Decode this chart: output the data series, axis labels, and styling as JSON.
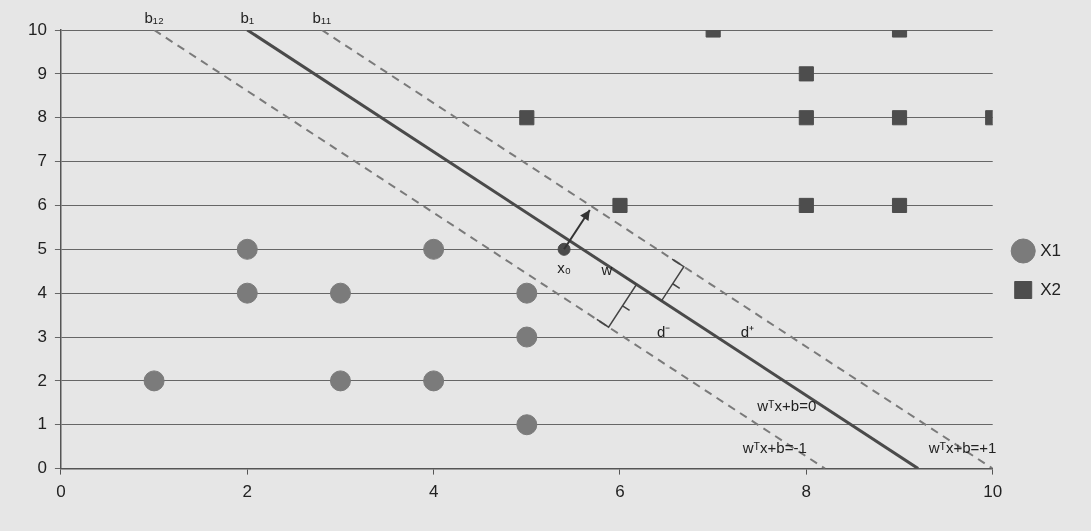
{
  "chart_data": {
    "type": "scatter",
    "xlim": [
      0,
      10
    ],
    "xticks": [
      0,
      2,
      4,
      6,
      8,
      10
    ],
    "ylim": [
      0,
      10
    ],
    "yticks": [
      0,
      1,
      2,
      3,
      4,
      5,
      6,
      7,
      8,
      9,
      10
    ],
    "grid": "y",
    "legend": "right",
    "series": [
      {
        "name": "X1",
        "marker": "circle",
        "color": "#7b7b7b",
        "x": [
          2,
          4,
          2,
          3,
          5,
          5,
          1,
          3,
          4,
          5
        ],
        "values": [
          5,
          5,
          4,
          4,
          4,
          3,
          2,
          2,
          2,
          1
        ]
      },
      {
        "name": "X2",
        "marker": "square",
        "color": "#4d4d4d",
        "x": [
          7,
          9,
          8,
          5,
          8,
          9,
          10,
          6,
          8,
          9
        ],
        "values": [
          10,
          10,
          9,
          8,
          8,
          8,
          8,
          6,
          6,
          6
        ]
      },
      {
        "marker": "circle",
        "color": "#4a4a4a",
        "x": [
          5.4
        ],
        "values": [
          5
        ]
      },
      {
        "name": "b₁₂",
        "type": "line",
        "line_style": "dashed",
        "marker": "none",
        "color": "#7a7a7a",
        "x": [
          1,
          8.2
        ],
        "values": [
          10,
          0
        ]
      },
      {
        "name": "b₁",
        "type": "line",
        "line_style": "solid",
        "marker": "none",
        "color": "#4a4a4a",
        "x": [
          2,
          9.2
        ],
        "values": [
          10,
          0
        ]
      },
      {
        "name": "b₁₁",
        "type": "line",
        "line_style": "dashed",
        "marker": "none",
        "color": "#7a7a7a",
        "x": [
          2.8,
          10
        ],
        "values": [
          10,
          0
        ]
      }
    ],
    "annotations": [
      {
        "text": "w",
        "x": 5.86,
        "y": 4.5
      },
      {
        "text": "x₀",
        "x": 5.4,
        "y": 5
      },
      "d⁻",
      "d⁺",
      "wᵀx+b=0",
      "wᵀx+b=-1",
      "wᵀx+b=+1"
    ]
  }
}
